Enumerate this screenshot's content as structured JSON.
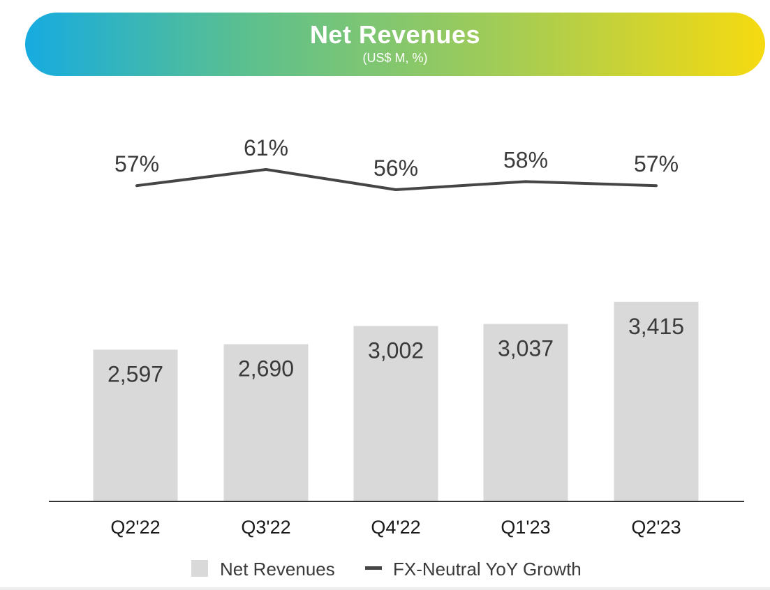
{
  "header": {
    "title": "Net Revenues",
    "subtitle": "(US$ M, %)"
  },
  "colors": {
    "bar": "#d9d9d9",
    "line": "#454545",
    "label_text": "#3a3a3a",
    "axis": "#333333"
  },
  "chart_data": {
    "type": "bar",
    "title": "Net Revenues",
    "subtitle": "(US$ M, %)",
    "categories": [
      "Q2'22",
      "Q3'22",
      "Q4'22",
      "Q1'23",
      "Q2'23"
    ],
    "series": [
      {
        "name": "Net Revenues",
        "type": "bar",
        "values": [
          2597,
          2690,
          3002,
          3037,
          3415
        ],
        "labels": [
          "2,597",
          "2,690",
          "3,002",
          "3,037",
          "3,415"
        ]
      },
      {
        "name": "FX-Neutral YoY Growth",
        "type": "line",
        "values": [
          57,
          61,
          56,
          58,
          57
        ],
        "labels": [
          "57%",
          "61%",
          "56%",
          "58%",
          "57%"
        ]
      }
    ],
    "legend": [
      "Net Revenues",
      "FX-Neutral YoY Growth"
    ],
    "legend_position": "bottom-center",
    "grid": false,
    "ylim": [
      0,
      3600
    ],
    "growth_ylim": [
      50,
      70
    ]
  }
}
